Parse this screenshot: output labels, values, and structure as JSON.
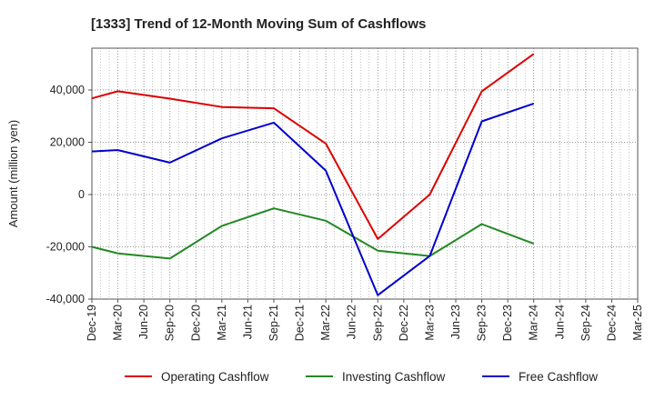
{
  "chart_data": {
    "type": "line",
    "title": "[1333]  Trend of 12-Month Moving Sum of Cashflows",
    "xlabel": "",
    "ylabel": "Amount (million yen)",
    "categories": [
      "Dec-19",
      "Mar-20",
      "Jun-20",
      "Sep-20",
      "Dec-20",
      "Mar-21",
      "Jun-21",
      "Sep-21",
      "Dec-21",
      "Mar-22",
      "Jun-22",
      "Sep-22",
      "Dec-22",
      "Mar-23",
      "Jun-23",
      "Sep-23",
      "Dec-23",
      "Mar-24",
      "Jun-24",
      "Sep-24",
      "Dec-24",
      "Mar-25"
    ],
    "ylim": [
      -40000,
      56000
    ],
    "yticks": [
      -40000,
      -20000,
      0,
      20000,
      40000
    ],
    "ytick_labels": [
      "-40,000",
      "-20,000",
      "0",
      "20,000",
      "40,000"
    ],
    "grid": true,
    "legend_position": "bottom",
    "series": [
      {
        "name": "Operating Cashflow",
        "color": "#dd0000",
        "values": [
          36800,
          39500,
          null,
          36700,
          null,
          33500,
          null,
          33000,
          null,
          19500,
          null,
          -17000,
          null,
          0,
          null,
          39500,
          null,
          53800,
          null,
          null,
          null,
          null
        ]
      },
      {
        "name": "Investing Cashflow",
        "color": "#228822",
        "values": [
          -20000,
          -22500,
          null,
          -24500,
          null,
          -12000,
          null,
          -5300,
          null,
          -10000,
          null,
          -21500,
          null,
          -23500,
          null,
          -11300,
          null,
          -18800,
          null,
          null,
          null,
          null
        ]
      },
      {
        "name": "Free Cashflow",
        "color": "#0000cc",
        "values": [
          16500,
          17000,
          null,
          12200,
          null,
          21500,
          null,
          27500,
          null,
          9200,
          null,
          -38500,
          null,
          -23500,
          null,
          28000,
          null,
          34800,
          null,
          null,
          null,
          null
        ]
      }
    ]
  }
}
